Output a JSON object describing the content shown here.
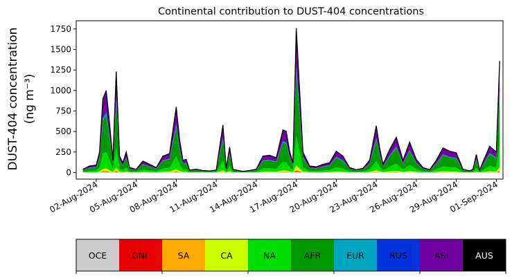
{
  "chart_data": {
    "type": "area",
    "title": "Continental contribution to DUST-404 concentrations",
    "ylabel_line1": "DUST-404 concentration",
    "ylabel_line2": "(ng m⁻³)",
    "ylim": [
      -80,
      1850
    ],
    "yticks": [
      0,
      250,
      500,
      750,
      1000,
      1250,
      1500,
      1750
    ],
    "ytick_labels": [
      "0",
      "250",
      "500",
      "750",
      "1000",
      "1250",
      "1500",
      "1750"
    ],
    "x_start": "2024-07-31T12:00",
    "x_end": "2024-09-01T12:00",
    "xticks": [
      "02-Aug-2024",
      "05-Aug-2024",
      "08-Aug-2024",
      "11-Aug-2024",
      "14-Aug-2024",
      "17-Aug-2024",
      "20-Aug-2024",
      "23-Aug-2024",
      "26-Aug-2024",
      "29-Aug-2024",
      "01-Sep-2024"
    ],
    "total_days_offset_note": "",
    "x": [
      "2024-08-01T00:00",
      "2024-08-01T12:00",
      "2024-08-02T00:00",
      "2024-08-02T06:00",
      "2024-08-02T12:00",
      "2024-08-02T18:00",
      "2024-08-03T00:00",
      "2024-08-03T06:00",
      "2024-08-03T12:00",
      "2024-08-03T18:00",
      "2024-08-04T00:00",
      "2024-08-04T06:00",
      "2024-08-04T12:00",
      "2024-08-05T00:00",
      "2024-08-05T12:00",
      "2024-08-06T00:00",
      "2024-08-06T12:00",
      "2024-08-07T00:00",
      "2024-08-07T12:00",
      "2024-08-08T00:00",
      "2024-08-08T06:00",
      "2024-08-08T12:00",
      "2024-08-08T18:00",
      "2024-08-09T00:00",
      "2024-08-09T12:00",
      "2024-08-10T00:00",
      "2024-08-10T12:00",
      "2024-08-11T00:00",
      "2024-08-11T12:00",
      "2024-08-11T18:00",
      "2024-08-12T00:00",
      "2024-08-12T06:00",
      "2024-08-12T12:00",
      "2024-08-13T00:00",
      "2024-08-13T12:00",
      "2024-08-14T00:00",
      "2024-08-14T12:00",
      "2024-08-15T00:00",
      "2024-08-15T12:00",
      "2024-08-16T00:00",
      "2024-08-16T06:00",
      "2024-08-16T12:00",
      "2024-08-16T18:00",
      "2024-08-17T00:00",
      "2024-08-17T12:00",
      "2024-08-18T00:00",
      "2024-08-18T12:00",
      "2024-08-19T00:00",
      "2024-08-19T12:00",
      "2024-08-20T00:00",
      "2024-08-20T12:00",
      "2024-08-21T00:00",
      "2024-08-21T12:00",
      "2024-08-22T00:00",
      "2024-08-22T12:00",
      "2024-08-23T00:00",
      "2024-08-23T06:00",
      "2024-08-23T12:00",
      "2024-08-24T00:00",
      "2024-08-24T12:00",
      "2024-08-25T00:00",
      "2024-08-25T12:00",
      "2024-08-26T00:00",
      "2024-08-26T12:00",
      "2024-08-27T00:00",
      "2024-08-27T12:00",
      "2024-08-28T00:00",
      "2024-08-28T12:00",
      "2024-08-29T00:00",
      "2024-08-29T12:00",
      "2024-08-30T00:00",
      "2024-08-30T06:00",
      "2024-08-30T12:00",
      "2024-08-30T18:00",
      "2024-08-31T00:00",
      "2024-08-31T12:00",
      "2024-09-01T00:00",
      "2024-09-01T06:00"
    ],
    "total": [
      40,
      80,
      90,
      250,
      900,
      1000,
      600,
      150,
      1230,
      200,
      120,
      250,
      60,
      40,
      140,
      100,
      60,
      200,
      230,
      800,
      400,
      150,
      160,
      30,
      40,
      25,
      20,
      30,
      580,
      50,
      310,
      40,
      30,
      15,
      25,
      40,
      200,
      210,
      180,
      520,
      500,
      260,
      120,
      1760,
      250,
      80,
      70,
      100,
      120,
      260,
      200,
      60,
      35,
      50,
      150,
      570,
      300,
      100,
      280,
      430,
      150,
      370,
      160,
      60,
      35,
      150,
      300,
      260,
      240,
      40,
      20,
      40,
      220,
      30,
      130,
      320,
      250,
      1360
    ],
    "series": [
      {
        "name": "OCE",
        "color": "#cccccc"
      },
      {
        "name": "GNL",
        "color": "#e60000"
      },
      {
        "name": "SA",
        "color": "#ffaa00"
      },
      {
        "name": "CA",
        "color": "#ccff00"
      },
      {
        "name": "NA",
        "color": "#00dd00"
      },
      {
        "name": "AFR",
        "color": "#009900"
      },
      {
        "name": "EUR",
        "color": "#00a5c0"
      },
      {
        "name": "RUS",
        "color": "#0033dd"
      },
      {
        "name": "ASI",
        "color": "#7000a0"
      },
      {
        "name": "AUS",
        "color": "#000000"
      }
    ]
  }
}
